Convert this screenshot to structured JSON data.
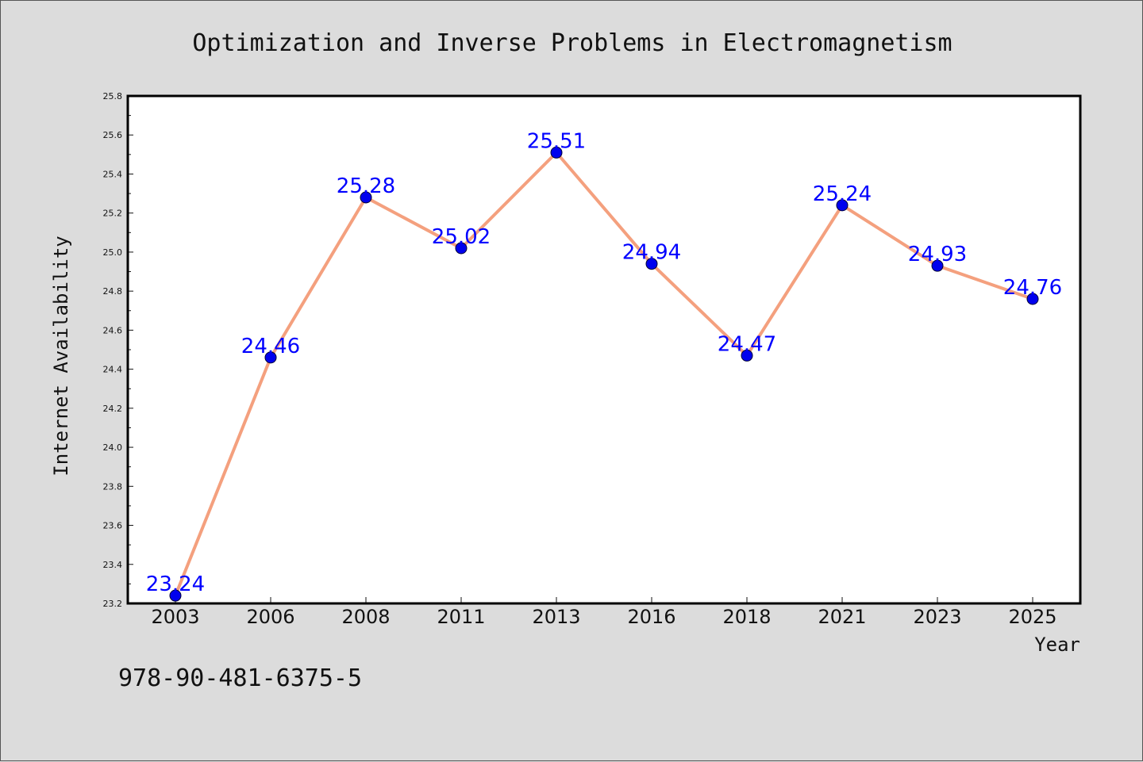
{
  "chart_data": {
    "type": "line",
    "title": "Optimization and Inverse Problems in Electromagnetism",
    "xlabel": "Year",
    "ylabel": "Internet Availability",
    "categories": [
      "2003",
      "2006",
      "2008",
      "2011",
      "2013",
      "2016",
      "2018",
      "2021",
      "2023",
      "2025"
    ],
    "series": [
      {
        "values": [
          23.24,
          24.46,
          25.28,
          25.02,
          25.51,
          24.94,
          24.47,
          25.24,
          24.93,
          24.76
        ]
      }
    ],
    "data_labels": [
      "23.24",
      "24.46",
      "25.28",
      "25.02",
      "25.51",
      "24.94",
      "24.47",
      "25.24",
      "24.93",
      "24.76"
    ],
    "ylim": [
      23.2,
      25.8
    ],
    "yticks": [
      "23.2",
      "23.4",
      "23.6",
      "23.8",
      "24.0",
      "24.2",
      "24.4",
      "24.6",
      "24.8",
      "25.0",
      "25.2",
      "25.4",
      "25.6",
      "25.8"
    ],
    "grid": false,
    "legend": "none",
    "colors": {
      "line": "#f4a07e",
      "marker": "#0000ee",
      "label": "#0000ff"
    }
  },
  "footer_text": "978-90-481-6375-5"
}
